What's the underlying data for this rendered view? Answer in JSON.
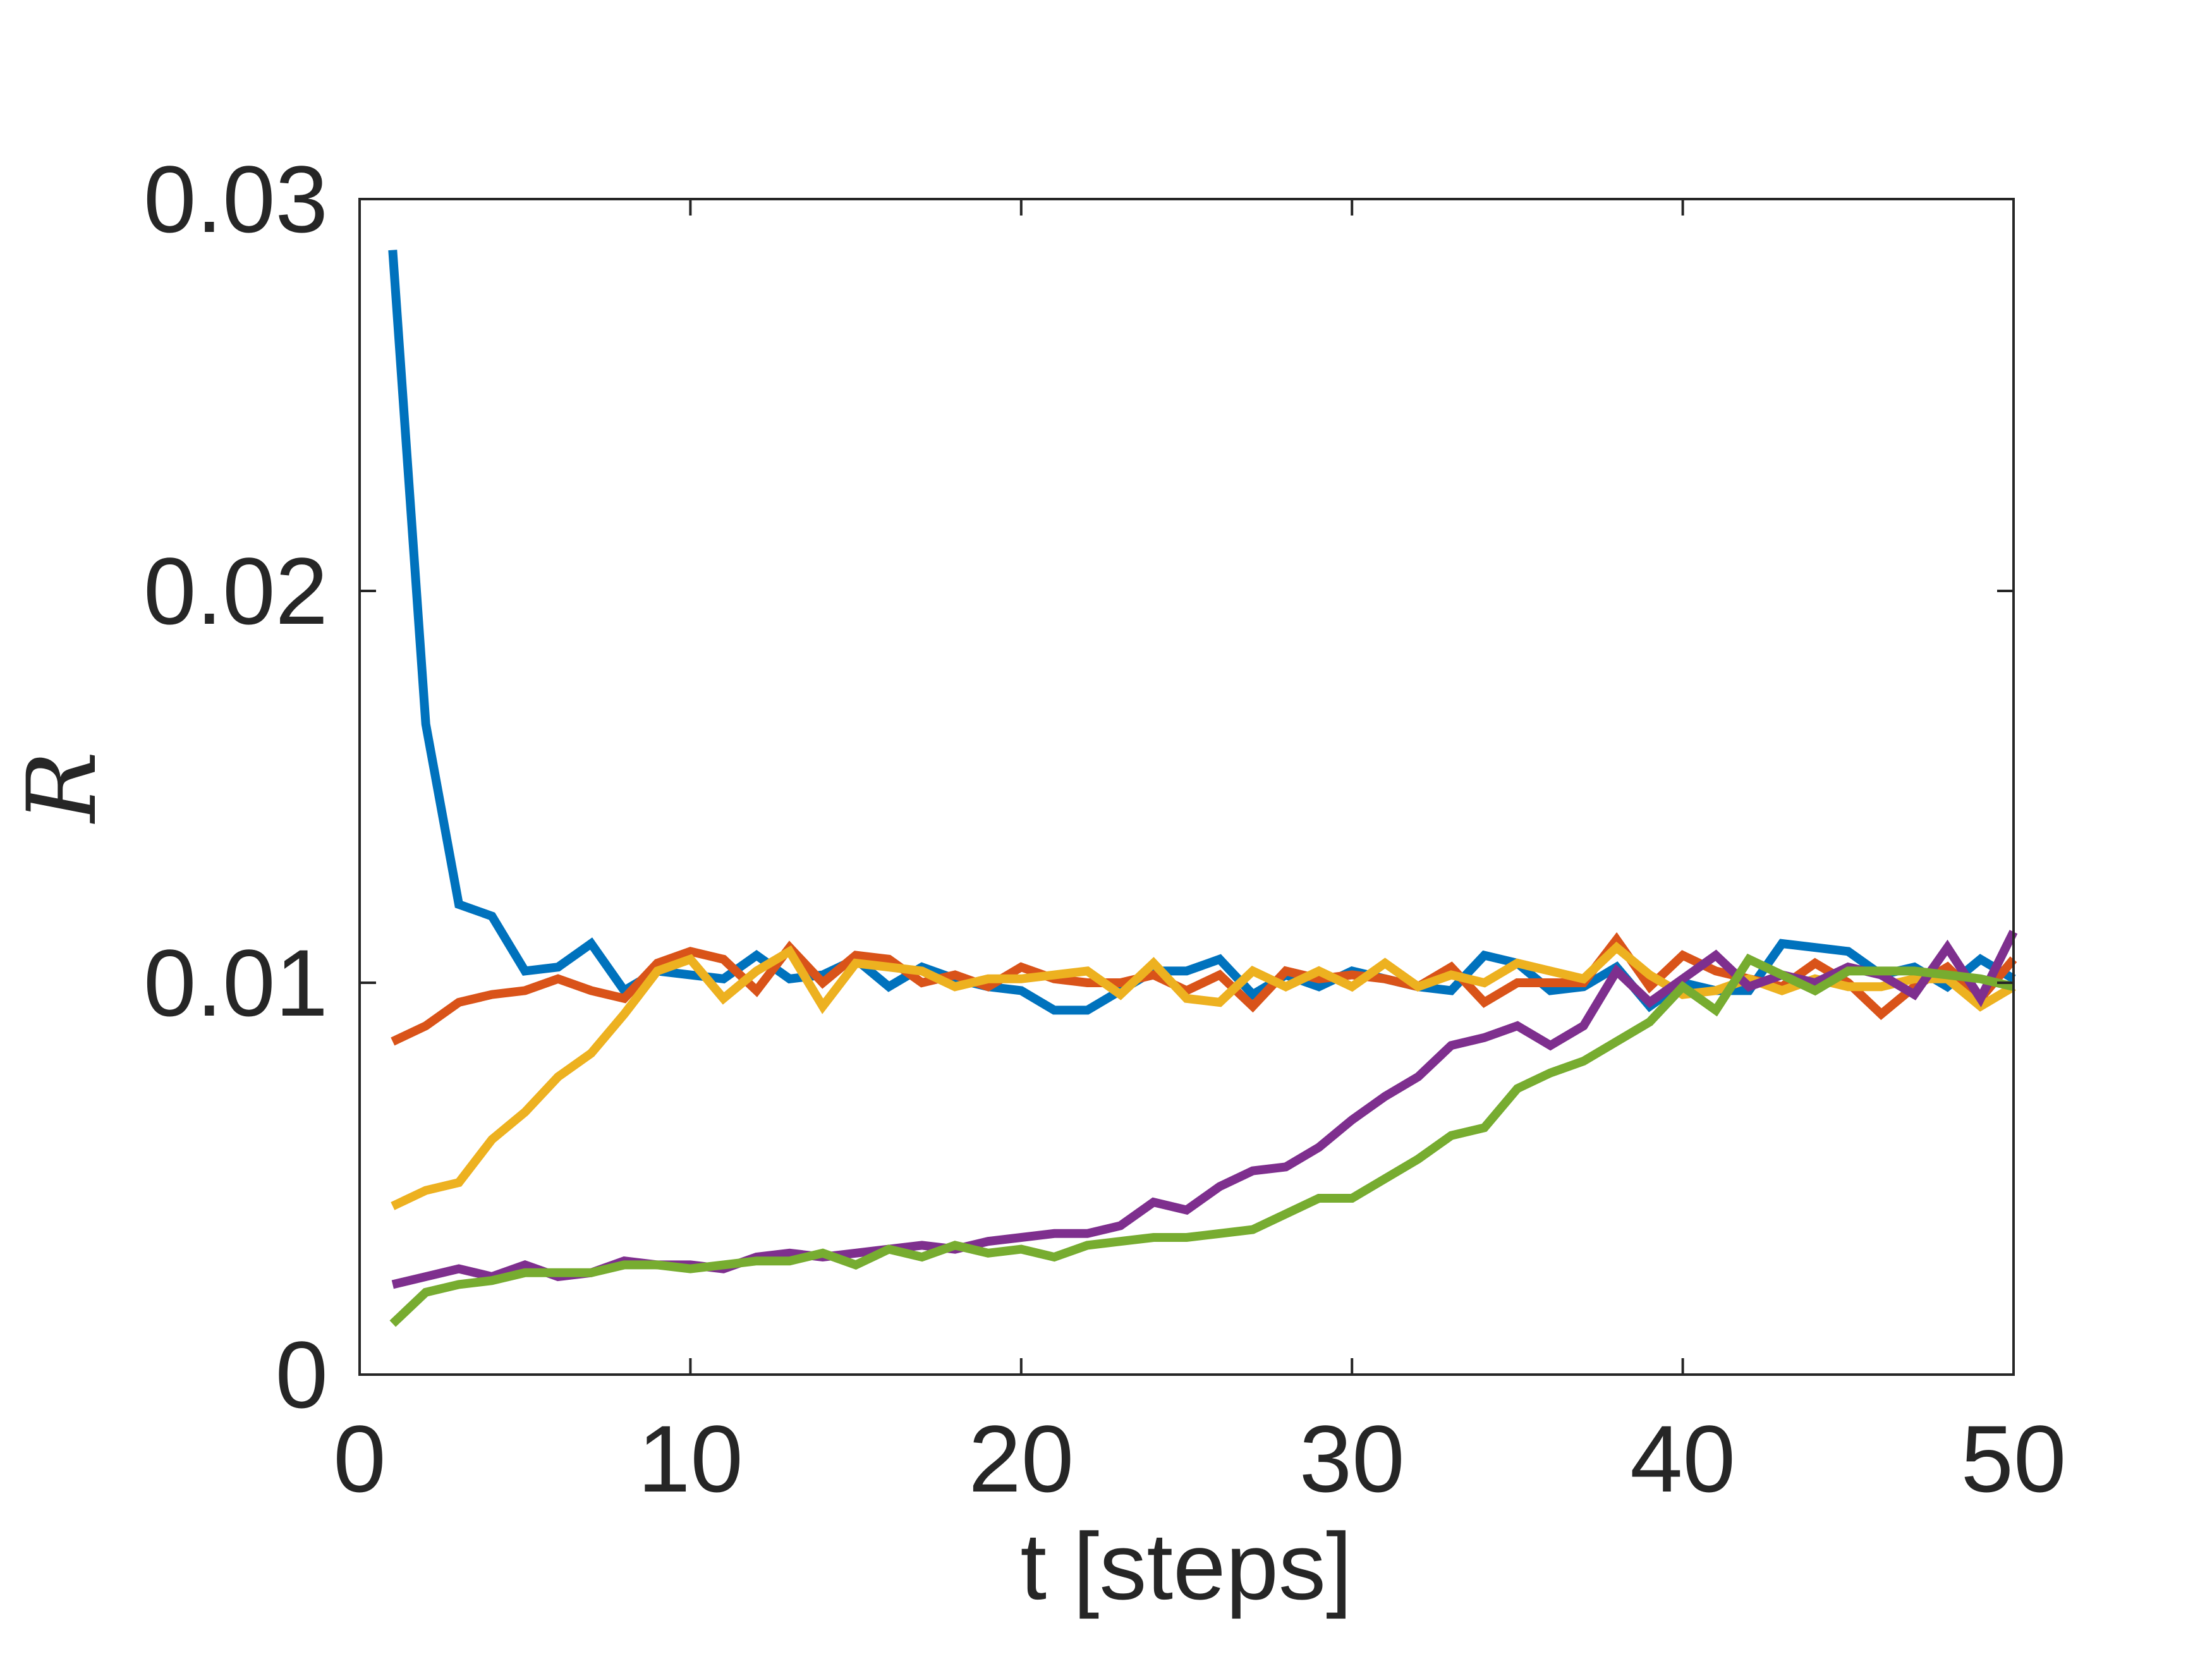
{
  "chart_data": {
    "type": "line",
    "xlabel": "t [steps]",
    "ylabel": "R",
    "xlim": [
      0,
      50
    ],
    "ylim": [
      0,
      0.03
    ],
    "xticks": [
      "0",
      "10",
      "20",
      "30",
      "40",
      "50"
    ],
    "yticks": [
      "0",
      "0.01",
      "0.02",
      "0.03"
    ],
    "grid": false,
    "legend": "none",
    "x": [
      1,
      2,
      3,
      4,
      5,
      6,
      7,
      8,
      9,
      10,
      11,
      12,
      13,
      14,
      15,
      16,
      17,
      18,
      19,
      20,
      21,
      22,
      23,
      24,
      25,
      26,
      27,
      28,
      29,
      30,
      31,
      32,
      33,
      34,
      35,
      36,
      37,
      38,
      39,
      40,
      41,
      42,
      43,
      44,
      45,
      46,
      47,
      48,
      49,
      50
    ],
    "series": [
      {
        "color": "#0072BD",
        "values": [
          0.0287,
          0.0166,
          0.012,
          0.0117,
          0.0103,
          0.0104,
          0.011,
          0.0098,
          0.0103,
          0.0102,
          0.0101,
          0.0107,
          0.0101,
          0.0102,
          0.0106,
          0.0099,
          0.0104,
          0.0101,
          0.0099,
          0.0098,
          0.0093,
          0.0093,
          0.0098,
          0.0103,
          0.0103,
          0.0106,
          0.0097,
          0.0102,
          0.0099,
          0.0103,
          0.0101,
          0.0099,
          0.0098,
          0.0107,
          0.0105,
          0.0098,
          0.0099,
          0.0104,
          0.0094,
          0.01,
          0.0098,
          0.0098,
          0.011,
          0.0109,
          0.0108,
          0.0102,
          0.0104,
          0.0099,
          0.0106,
          0.0101
        ]
      },
      {
        "color": "#D95319",
        "values": [
          0.0085,
          0.0089,
          0.0095,
          0.0097,
          0.0098,
          0.0101,
          0.0098,
          0.0096,
          0.0105,
          0.0108,
          0.0106,
          0.0098,
          0.0109,
          0.01,
          0.0107,
          0.0106,
          0.01,
          0.0102,
          0.0099,
          0.0104,
          0.0101,
          0.01,
          0.01,
          0.0102,
          0.0098,
          0.0102,
          0.0094,
          0.0103,
          0.0101,
          0.0102,
          0.0101,
          0.0099,
          0.0104,
          0.0095,
          0.01,
          0.01,
          0.01,
          0.0111,
          0.0099,
          0.0107,
          0.0103,
          0.0101,
          0.0099,
          0.0105,
          0.01,
          0.0092,
          0.0099,
          0.0104,
          0.0096,
          0.0106
        ]
      },
      {
        "color": "#EDB120",
        "values": [
          0.0043,
          0.0047,
          0.0049,
          0.006,
          0.0067,
          0.0076,
          0.0082,
          0.0092,
          0.0103,
          0.0106,
          0.0096,
          0.0103,
          0.0108,
          0.0094,
          0.0105,
          0.0104,
          0.0103,
          0.0099,
          0.0101,
          0.0101,
          0.0102,
          0.0103,
          0.0097,
          0.0105,
          0.0096,
          0.0095,
          0.0103,
          0.0099,
          0.0103,
          0.0099,
          0.0105,
          0.0099,
          0.0102,
          0.01,
          0.0105,
          0.0103,
          0.0101,
          0.0109,
          0.0102,
          0.0097,
          0.0098,
          0.0101,
          0.0098,
          0.0101,
          0.0099,
          0.0099,
          0.0101,
          0.0101,
          0.0094,
          0.0099
        ]
      },
      {
        "color": "#7E2F8E",
        "values": [
          0.0023,
          0.0025,
          0.0027,
          0.0025,
          0.0028,
          0.0025,
          0.0026,
          0.0029,
          0.0028,
          0.0028,
          0.0027,
          0.003,
          0.0031,
          0.003,
          0.0031,
          0.0032,
          0.0033,
          0.0032,
          0.0034,
          0.0035,
          0.0036,
          0.0036,
          0.0038,
          0.0044,
          0.0042,
          0.0048,
          0.0052,
          0.0053,
          0.0058,
          0.0065,
          0.0071,
          0.0076,
          0.0084,
          0.0086,
          0.0089,
          0.0084,
          0.0089,
          0.0103,
          0.0095,
          0.0101,
          0.0107,
          0.0099,
          0.0102,
          0.01,
          0.0104,
          0.0102,
          0.0097,
          0.0109,
          0.0096,
          0.0113
        ]
      },
      {
        "color": "#77AC30",
        "values": [
          0.0013,
          0.0021,
          0.0023,
          0.0024,
          0.0026,
          0.0026,
          0.0026,
          0.0028,
          0.0028,
          0.0027,
          0.0028,
          0.0029,
          0.0029,
          0.0031,
          0.0028,
          0.0032,
          0.003,
          0.0033,
          0.0031,
          0.0032,
          0.003,
          0.0033,
          0.0034,
          0.0035,
          0.0035,
          0.0036,
          0.0037,
          0.0041,
          0.0045,
          0.0045,
          0.005,
          0.0055,
          0.0061,
          0.0063,
          0.0073,
          0.0077,
          0.008,
          0.0085,
          0.009,
          0.0099,
          0.0093,
          0.0106,
          0.0102,
          0.0098,
          0.0103,
          0.0103,
          0.0103,
          0.0102,
          0.0101,
          0.0099
        ]
      }
    ]
  }
}
